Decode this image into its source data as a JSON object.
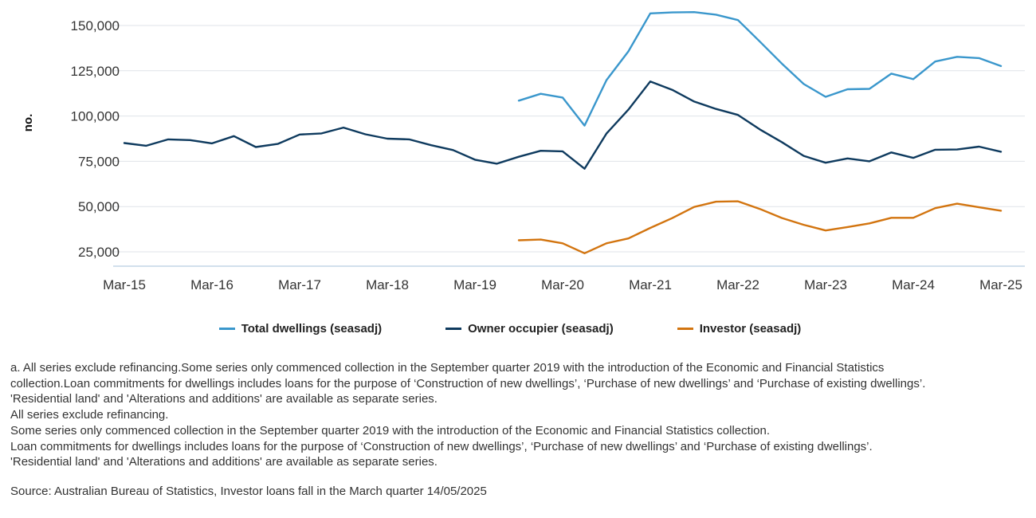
{
  "chart_data": {
    "type": "line",
    "title": "",
    "xlabel": "",
    "ylabel": "no.",
    "ylim": [
      17500,
      160000
    ],
    "yticks": [
      25000,
      50000,
      75000,
      100000,
      125000,
      150000
    ],
    "ytick_labels": [
      "25,000",
      "50,000",
      "75,000",
      "100,000",
      "125,000",
      "150,000"
    ],
    "xtick_labels": [
      "Mar-15",
      "Mar-16",
      "Mar-17",
      "Mar-18",
      "Mar-19",
      "Mar-20",
      "Mar-21",
      "Mar-22",
      "Mar-23",
      "Mar-24",
      "Mar-25"
    ],
    "xtick_index": [
      0,
      4,
      8,
      12,
      16,
      20,
      24,
      28,
      32,
      36,
      40
    ],
    "grid": true,
    "legend_position": "bottom",
    "x": [
      "Mar-15",
      "Jun-15",
      "Sep-15",
      "Dec-15",
      "Mar-16",
      "Jun-16",
      "Sep-16",
      "Dec-16",
      "Mar-17",
      "Jun-17",
      "Sep-17",
      "Dec-17",
      "Mar-18",
      "Jun-18",
      "Sep-18",
      "Dec-18",
      "Mar-19",
      "Jun-19",
      "Sep-19",
      "Dec-19",
      "Mar-20",
      "Jun-20",
      "Sep-20",
      "Dec-20",
      "Mar-21",
      "Jun-21",
      "Sep-21",
      "Dec-21",
      "Mar-22",
      "Jun-22",
      "Sep-22",
      "Dec-22",
      "Mar-23",
      "Jun-23",
      "Sep-23",
      "Dec-23",
      "Mar-24",
      "Jun-24",
      "Sep-24",
      "Dec-24",
      "Mar-25"
    ],
    "series": [
      {
        "name": "Total dwellings (seasadj)",
        "color": "#3a97cc",
        "values": [
          null,
          null,
          null,
          null,
          null,
          null,
          null,
          null,
          null,
          null,
          null,
          null,
          null,
          null,
          null,
          null,
          null,
          null,
          108500,
          112300,
          110200,
          94700,
          119800,
          135700,
          156700,
          157200,
          157400,
          156000,
          153000,
          141100,
          129000,
          117700,
          110600,
          114800,
          115000,
          123400,
          120400,
          130100,
          132700,
          132000,
          127600
        ]
      },
      {
        "name": "Owner occupier (seasadj)",
        "color": "#0e3a5e",
        "values": [
          85100,
          83600,
          87100,
          86700,
          84900,
          88900,
          82900,
          84600,
          89800,
          90400,
          93600,
          89900,
          87500,
          87100,
          83900,
          81200,
          75900,
          73700,
          77500,
          80800,
          80500,
          70900,
          90300,
          103500,
          119100,
          114500,
          108000,
          103900,
          100600,
          92600,
          85600,
          78000,
          74200,
          76600,
          75000,
          79900,
          76900,
          81400,
          81500,
          83100,
          80300
        ]
      },
      {
        "name": "Investor (seasadj)",
        "color": "#d2740f",
        "values": [
          null,
          null,
          null,
          null,
          null,
          null,
          null,
          null,
          null,
          null,
          null,
          null,
          null,
          null,
          null,
          null,
          null,
          null,
          31400,
          31800,
          29700,
          24200,
          29700,
          32400,
          38200,
          43600,
          49800,
          52700,
          52900,
          48700,
          43700,
          39900,
          36800,
          38700,
          40700,
          43800,
          43800,
          49100,
          51600,
          49600,
          47700
        ]
      }
    ]
  },
  "notes": {
    "lines": [
      "a. All series exclude refinancing.Some series only commenced collection in the September quarter 2019 with the introduction of the Economic and Financial Statistics",
      "collection.Loan commitments for dwellings includes loans for the purpose of ‘Construction of new dwellings’, ‘Purchase of new dwellings’ and ‘Purchase of existing dwellings’.",
      "'Residential land' and 'Alterations and additions' are available as separate series.",
      "All series exclude refinancing.",
      "Some series only commenced collection in the September quarter 2019 with the introduction of the Economic and Financial Statistics collection.",
      "Loan commitments for dwellings includes loans for the purpose of ‘Construction of new dwellings’, ‘Purchase of new dwellings’ and ‘Purchase of existing dwellings’.",
      "'Residential land' and 'Alterations and additions' are available as separate series."
    ],
    "source": "Source: Australian Bureau of Statistics, Investor loans fall in the March quarter 14/05/2025"
  }
}
